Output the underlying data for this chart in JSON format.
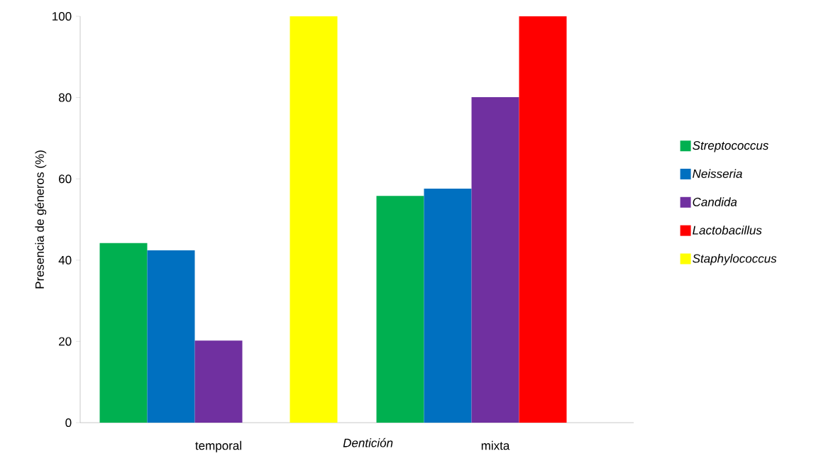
{
  "chart_data": {
    "type": "bar",
    "ylabel": "Presencia de géneros (%)",
    "xlabel": "Dentición",
    "categories": [
      "temporal",
      "mixta"
    ],
    "series": [
      {
        "name": "Streptococcus",
        "color": "#00b050",
        "values": [
          44.2,
          55.8
        ]
      },
      {
        "name": "Neisseria",
        "color": "#0070c0",
        "values": [
          42.4,
          57.6
        ]
      },
      {
        "name": "Candida",
        "color": "#7030a0",
        "values": [
          20.2,
          80.1
        ]
      },
      {
        "name": "Lactobacillus",
        "color": "#ff0000",
        "values": [
          null,
          100
        ]
      },
      {
        "name": "Staphylococcus",
        "color": "#ffff00",
        "values": [
          100,
          null
        ]
      }
    ],
    "ylim": [
      0,
      100
    ],
    "yticks": [
      0,
      20,
      40,
      60,
      80,
      100
    ],
    "grid": false,
    "legend": "right"
  }
}
